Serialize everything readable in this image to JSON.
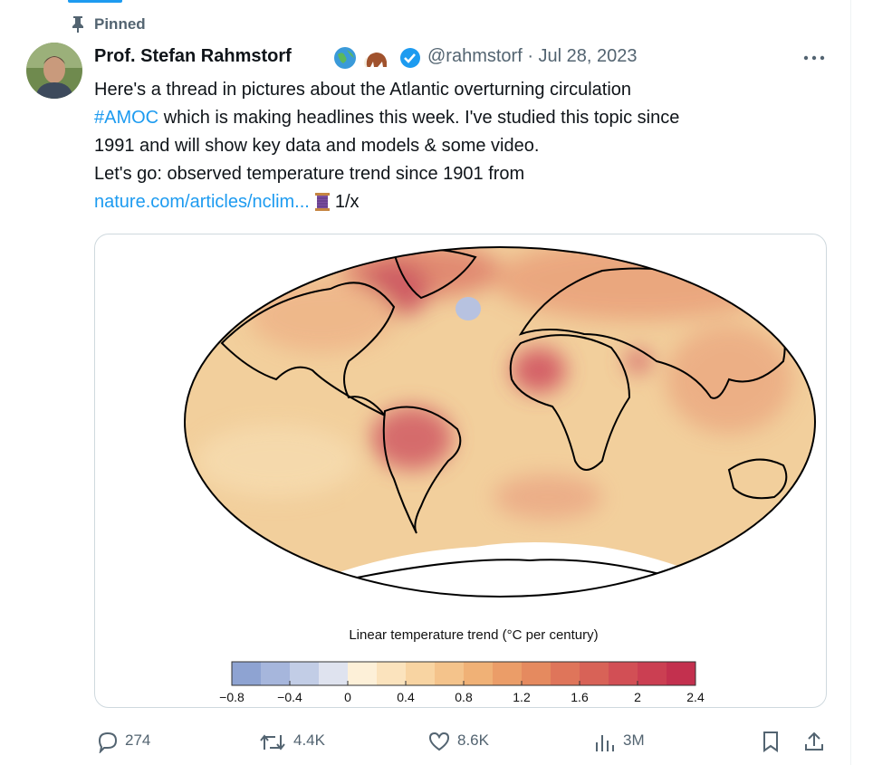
{
  "pinned_label": "Pinned",
  "author": {
    "name": "Prof. Stefan Rahmstorf",
    "handle": "@rahmstorf",
    "date": "Jul 28, 2023"
  },
  "text": {
    "part1": "Here's a thread in pictures about the Atlantic overturning circulation",
    "hashtag": "#AMOC",
    "part2": "which is making headlines this week. I've studied this topic since",
    "part3": "1991 and will show key data and models & some video.",
    "part4": "Let's go: observed temperature trend since 1901 from",
    "link": "nature.com/articles/nclim...",
    "thread_count": "1/x"
  },
  "image": {
    "colorbar_title": "Linear temperature trend (°C per century)",
    "colorbar_ticks": [
      "−0.8",
      "−0.4",
      "0",
      "0.4",
      "0.8",
      "1.2",
      "1.6",
      "2",
      "2.4"
    ]
  },
  "actions": {
    "replies": "274",
    "reposts": "4.4K",
    "likes": "8.6K",
    "views": "3M"
  }
}
